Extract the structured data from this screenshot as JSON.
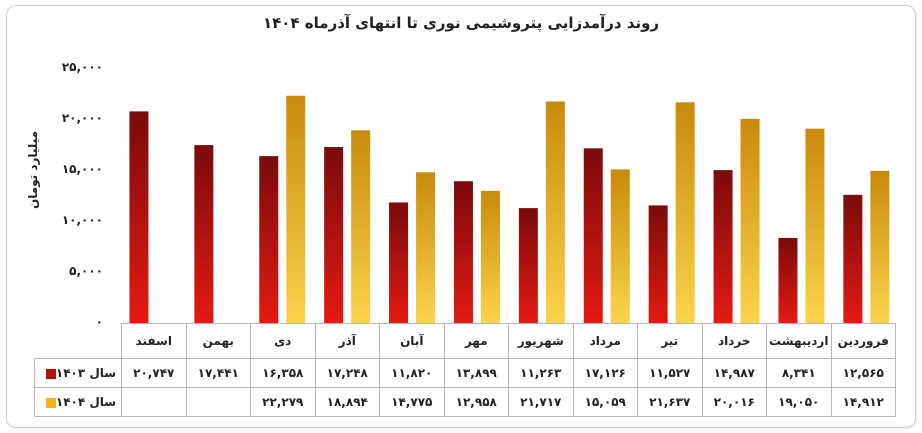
{
  "chart_data": {
    "type": "bar",
    "title": "روند درآمدزایی پتروشیمی نوری تا انتهای آذرماه ۱۴۰۴",
    "ylabel": "میلیارد تومان",
    "ylim": [
      0,
      25000
    ],
    "yticks": [
      "۰",
      "۵,۰۰۰",
      "۱۰,۰۰۰",
      "۱۵,۰۰۰",
      "۲۰,۰۰۰",
      "۲۵,۰۰۰"
    ],
    "categories": [
      "فروردین",
      "اردیبهشت",
      "خرداد",
      "تیر",
      "مرداد",
      "شهریور",
      "مهر",
      "آبان",
      "آذر",
      "دی",
      "بهمن",
      "اسفند"
    ],
    "series": [
      {
        "name": "سال ۱۴۰۳",
        "color": "#b31212",
        "values": [
          12565,
          8341,
          14987,
          11527,
          17126,
          11263,
          13899,
          11820,
          17248,
          16358,
          17441,
          20747
        ],
        "labels": [
          "۱۲,۵۶۵",
          "۸,۳۴۱",
          "۱۴,۹۸۷",
          "۱۱,۵۲۷",
          "۱۷,۱۲۶",
          "۱۱,۲۶۳",
          "۱۳,۸۹۹",
          "۱۱,۸۲۰",
          "۱۷,۲۴۸",
          "۱۶,۳۵۸",
          "۱۷,۴۴۱",
          "۲۰,۷۴۷"
        ]
      },
      {
        "name": "سال ۱۴۰۴",
        "color": "#f0b416",
        "values": [
          14912,
          19050,
          20016,
          21637,
          15059,
          21717,
          12958,
          14775,
          18894,
          22279,
          null,
          null
        ],
        "labels": [
          "۱۴,۹۱۲",
          "۱۹,۰۵۰",
          "۲۰,۰۱۶",
          "۲۱,۶۳۷",
          "۱۵,۰۵۹",
          "۲۱,۷۱۷",
          "۱۲,۹۵۸",
          "۱۴,۷۷۵",
          "۱۸,۸۹۴",
          "۲۲,۲۷۹",
          "",
          ""
        ]
      }
    ],
    "grid": false,
    "legend": "bottom-table"
  }
}
